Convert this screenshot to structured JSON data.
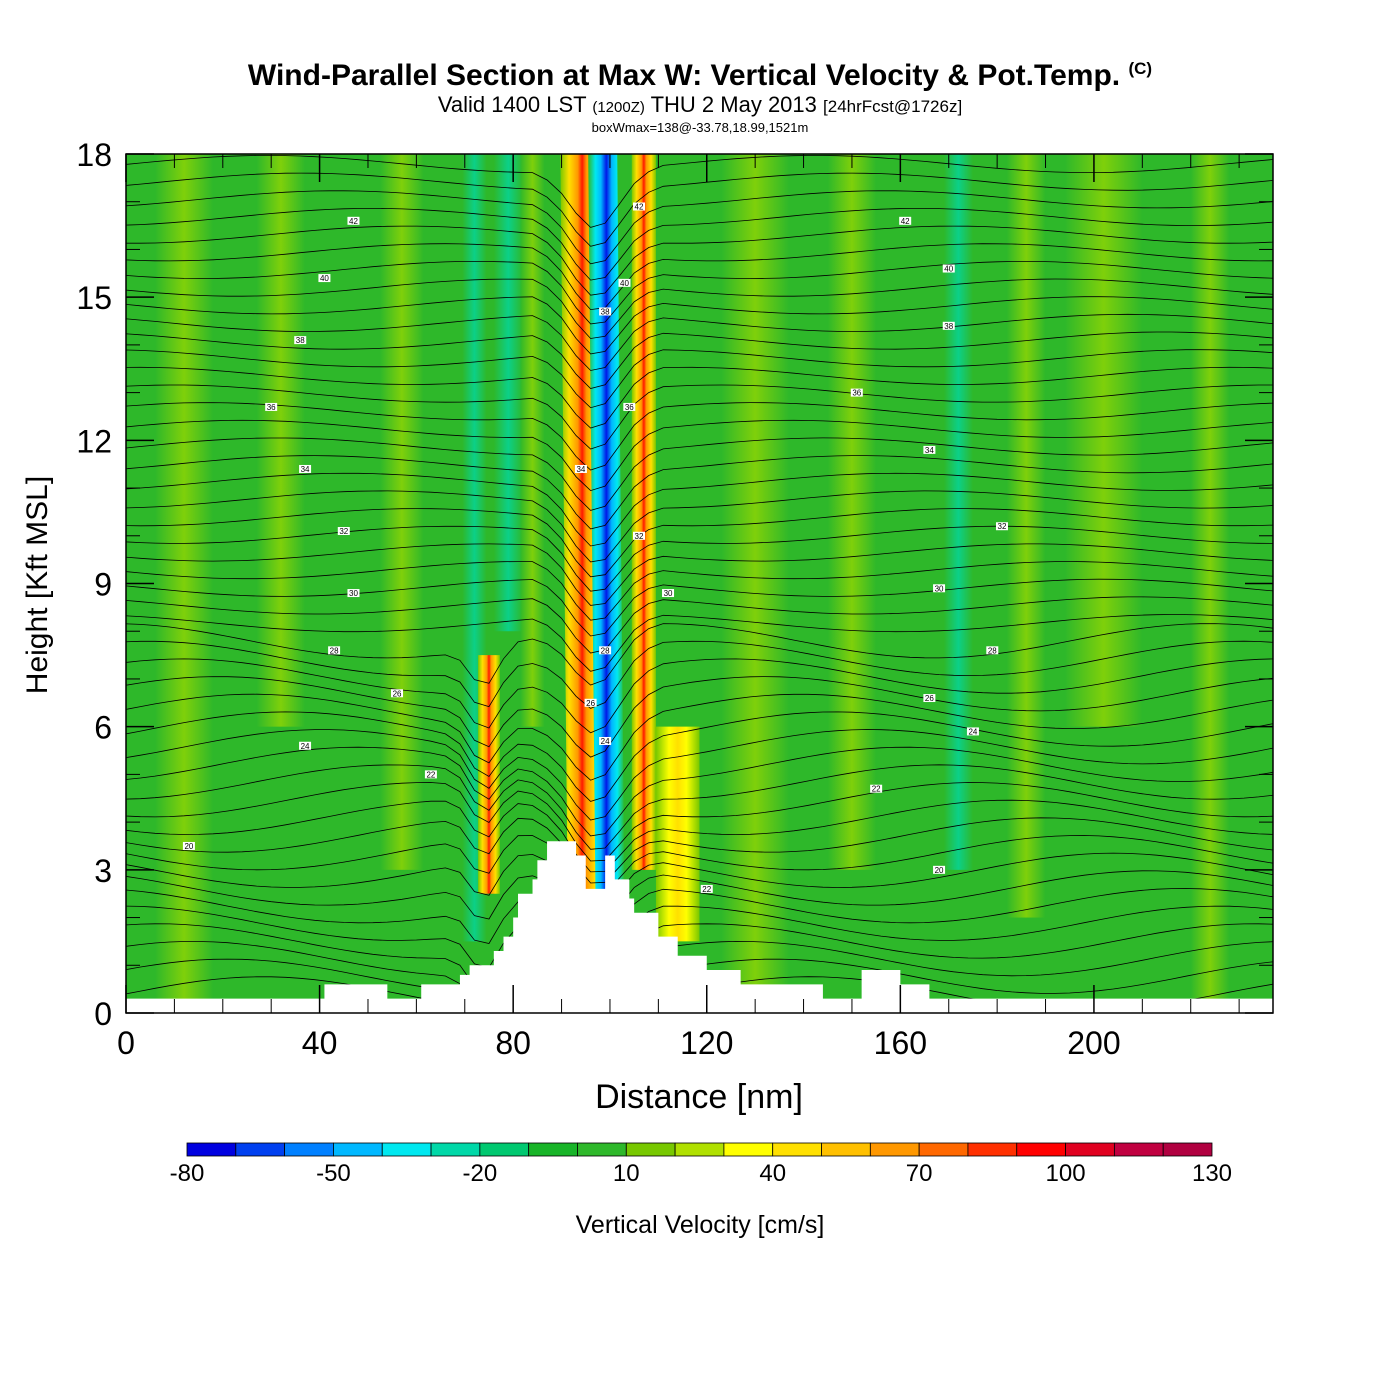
{
  "header": {
    "title": "Wind-Parallel Section at Max W: Vertical Velocity & Pot.Temp.",
    "copyright": "(C)",
    "valid_prefix": "Valid 1400 LST",
    "valid_utc": "(1200Z)",
    "valid_date": "THU 2 May 2013",
    "forecast_info": "[24hrFcst@1726z]",
    "box_info": "boxWmax=138@-33.78,18.99,1521m"
  },
  "chart_data": {
    "type": "heatmap",
    "xlabel": "Distance [nm]",
    "ylabel": "Height [Kft MSL]",
    "xlim": [
      0,
      237
    ],
    "ylim": [
      0,
      18
    ],
    "x_ticks": [
      0,
      40,
      80,
      120,
      160,
      200
    ],
    "y_ticks": [
      0,
      3,
      6,
      9,
      12,
      15,
      18
    ],
    "colorbar": {
      "label": "Vertical Velocity [cm/s]",
      "tick_labels": [
        "-80",
        "-50",
        "-20",
        "10",
        "40",
        "70",
        "100",
        "130"
      ],
      "levels": [
        -80,
        -70,
        -60,
        -50,
        -40,
        -30,
        -20,
        -10,
        0,
        10,
        20,
        30,
        40,
        50,
        60,
        70,
        80,
        90,
        100,
        110,
        120,
        130
      ],
      "colors": [
        "#0000e0",
        "#0040f0",
        "#0080ff",
        "#00b8ff",
        "#00e8f0",
        "#00d8a8",
        "#00c870",
        "#18b428",
        "#2eb82a",
        "#78c800",
        "#b0e000",
        "#ffff00",
        "#ffe000",
        "#ffc000",
        "#ff9800",
        "#ff6800",
        "#ff3000",
        "#ff0000",
        "#e00020",
        "#c00040",
        "#b00040"
      ]
    },
    "velocity_bands": [
      {
        "x_center": 75,
        "y_bottom": 2.5,
        "y_top": 7.5,
        "peak_cm_s": 100
      },
      {
        "x_center": 95,
        "y_bottom": 2.5,
        "y_top": 18,
        "peak_cm_s": 100
      },
      {
        "x_center": 100,
        "y_bottom": 2.5,
        "y_top": 18,
        "peak_cm_s": -80
      },
      {
        "x_center": 107,
        "y_bottom": 3,
        "y_top": 18,
        "peak_cm_s": 70
      },
      {
        "x_center": 114,
        "y_bottom": 1.5,
        "y_top": 6,
        "peak_cm_s": 40
      }
    ],
    "terrain_kft": {
      "x": [
        0,
        41,
        41,
        54,
        54,
        61,
        61,
        69,
        69,
        71,
        71,
        76,
        76,
        78,
        78,
        80,
        80,
        81,
        81,
        84,
        84,
        85,
        85,
        87,
        87,
        93,
        93,
        95,
        95,
        99,
        99,
        101,
        101,
        104,
        104,
        105,
        105,
        110,
        110,
        114,
        114,
        120,
        120,
        127,
        127,
        144,
        144,
        152,
        152,
        160,
        160,
        166,
        166,
        170,
        170,
        237
      ],
      "h": [
        0.3,
        0.3,
        0.6,
        0.6,
        0.3,
        0.3,
        0.6,
        0.6,
        0.8,
        0.8,
        1.0,
        1.0,
        1.3,
        1.3,
        1.6,
        1.6,
        2.0,
        2.0,
        2.5,
        2.5,
        2.8,
        2.8,
        3.2,
        3.2,
        3.6,
        3.6,
        3.3,
        3.3,
        2.6,
        2.6,
        3.3,
        3.3,
        2.8,
        2.8,
        2.4,
        2.4,
        2.1,
        2.1,
        1.6,
        1.6,
        1.2,
        1.2,
        0.9,
        0.9,
        0.6,
        0.6,
        0.3,
        0.3,
        0.9,
        0.9,
        0.6,
        0.6,
        0.3,
        0.3,
        0.3,
        0.3
      ]
    },
    "theta_contours": [
      {
        "label": "20",
        "x": 13,
        "y": 3.5
      },
      {
        "label": "22",
        "x": 63,
        "y": 5.0
      },
      {
        "label": "24",
        "x": 37,
        "y": 5.6
      },
      {
        "label": "26",
        "x": 56,
        "y": 6.7
      },
      {
        "label": "28",
        "x": 43,
        "y": 7.6
      },
      {
        "label": "30",
        "x": 47,
        "y": 8.8
      },
      {
        "label": "32",
        "x": 45,
        "y": 10.1
      },
      {
        "label": "34",
        "x": 37,
        "y": 11.4
      },
      {
        "label": "36",
        "x": 30,
        "y": 12.7
      },
      {
        "label": "38",
        "x": 36,
        "y": 14.1
      },
      {
        "label": "40",
        "x": 41,
        "y": 15.4
      },
      {
        "label": "42",
        "x": 47,
        "y": 16.6
      },
      {
        "label": "22",
        "x": 120,
        "y": 2.6
      },
      {
        "label": "20",
        "x": 168,
        "y": 3.0
      },
      {
        "label": "22",
        "x": 155,
        "y": 4.7
      },
      {
        "label": "24",
        "x": 175,
        "y": 5.9
      },
      {
        "label": "26",
        "x": 166,
        "y": 6.6
      },
      {
        "label": "28",
        "x": 179,
        "y": 7.6
      },
      {
        "label": "30",
        "x": 168,
        "y": 8.9
      },
      {
        "label": "32",
        "x": 181,
        "y": 10.2
      },
      {
        "label": "34",
        "x": 166,
        "y": 11.8
      },
      {
        "label": "36",
        "x": 151,
        "y": 13.0
      },
      {
        "label": "38",
        "x": 170,
        "y": 14.4
      },
      {
        "label": "40",
        "x": 170,
        "y": 15.6
      },
      {
        "label": "42",
        "x": 161,
        "y": 16.6
      },
      {
        "label": "24",
        "x": 99,
        "y": 5.7
      },
      {
        "label": "26",
        "x": 96,
        "y": 6.5
      },
      {
        "label": "28",
        "x": 99,
        "y": 7.6
      },
      {
        "label": "30",
        "x": 112,
        "y": 8.8
      },
      {
        "label": "32",
        "x": 106,
        "y": 10.0
      },
      {
        "label": "34",
        "x": 94,
        "y": 11.4
      },
      {
        "label": "36",
        "x": 104,
        "y": 12.7
      },
      {
        "label": "38",
        "x": 99,
        "y": 14.7
      },
      {
        "label": "40",
        "x": 103,
        "y": 15.3
      },
      {
        "label": "42",
        "x": 106,
        "y": 16.9
      }
    ]
  }
}
